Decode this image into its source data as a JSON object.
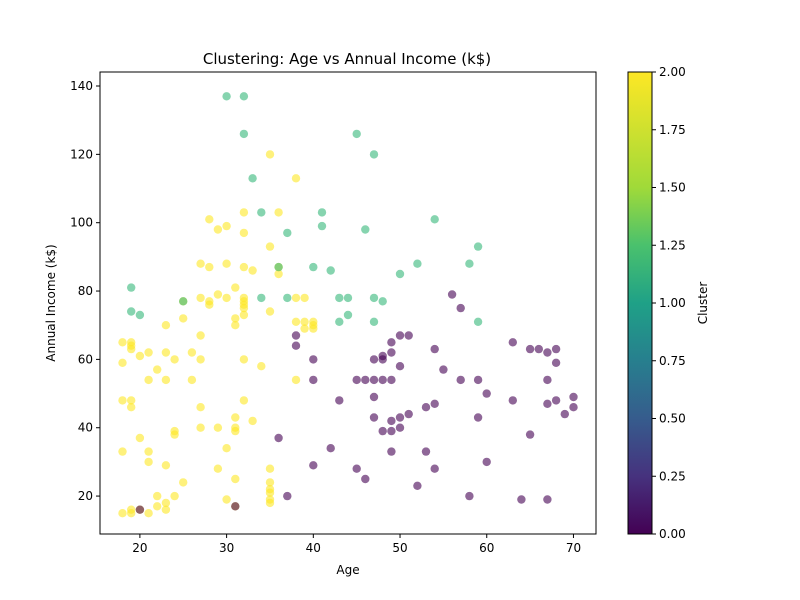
{
  "chart_data": {
    "type": "scatter",
    "title": "Clustering: Age vs Annual Income (k$)",
    "xlabel": "Age",
    "ylabel": "Annual Income (k$)",
    "xlim": [
      15.4,
      72.6
    ],
    "ylim": [
      8.9,
      144.1
    ],
    "xticks": [
      "20",
      "30",
      "40",
      "50",
      "60",
      "70"
    ],
    "yticks": [
      "20",
      "40",
      "60",
      "80",
      "100",
      "120",
      "140"
    ],
    "grid": false,
    "colorbar": {
      "label": "Cluster",
      "range": [
        0.0,
        2.0
      ],
      "ticks": [
        "0.00",
        "0.25",
        "0.50",
        "0.75",
        "1.00",
        "1.25",
        "1.50",
        "1.75",
        "2.00"
      ]
    },
    "series": [
      {
        "cluster": 2,
        "color": "#fde725",
        "points": [
          [
            18,
            15
          ],
          [
            19,
            15
          ],
          [
            19,
            16
          ],
          [
            20,
            16
          ],
          [
            21,
            15
          ],
          [
            22,
            17
          ],
          [
            23,
            16
          ],
          [
            23,
            18
          ],
          [
            24,
            20
          ],
          [
            22,
            20
          ],
          [
            25,
            24
          ],
          [
            18,
            33
          ],
          [
            21,
            33
          ],
          [
            21,
            30
          ],
          [
            23,
            29
          ],
          [
            20,
            37
          ],
          [
            24,
            38
          ],
          [
            24,
            39
          ],
          [
            18,
            48
          ],
          [
            19,
            46
          ],
          [
            19,
            48
          ],
          [
            18,
            59
          ],
          [
            18,
            65
          ],
          [
            19,
            65
          ],
          [
            19,
            63
          ],
          [
            19,
            64
          ],
          [
            20,
            61
          ],
          [
            21,
            62
          ],
          [
            21,
            54
          ],
          [
            22,
            57
          ],
          [
            23,
            54
          ],
          [
            23,
            62
          ],
          [
            24,
            60
          ],
          [
            26,
            62
          ],
          [
            26,
            54
          ],
          [
            23,
            70
          ],
          [
            25,
            72
          ],
          [
            25,
            77
          ],
          [
            27,
            88
          ],
          [
            28,
            87
          ],
          [
            28,
            77
          ],
          [
            28,
            76
          ],
          [
            29,
            79
          ],
          [
            30,
            78
          ],
          [
            30,
            88
          ],
          [
            28,
            101
          ],
          [
            29,
            98
          ],
          [
            30,
            99
          ],
          [
            27,
            78
          ],
          [
            27,
            67
          ],
          [
            27,
            60
          ],
          [
            27,
            46
          ],
          [
            27,
            40
          ],
          [
            29,
            40
          ],
          [
            29,
            28
          ],
          [
            30,
            34
          ],
          [
            30,
            19
          ],
          [
            31,
            25
          ],
          [
            31,
            17
          ],
          [
            31,
            43
          ],
          [
            31,
            39
          ],
          [
            31,
            40
          ],
          [
            32,
            48
          ],
          [
            33,
            42
          ],
          [
            32,
            60
          ],
          [
            34,
            58
          ],
          [
            31,
            70
          ],
          [
            31,
            72
          ],
          [
            32,
            73
          ],
          [
            31,
            81
          ],
          [
            32,
            75
          ],
          [
            32,
            76
          ],
          [
            32,
            77
          ],
          [
            32,
            78
          ],
          [
            33,
            86
          ],
          [
            32,
            87
          ],
          [
            32,
            97
          ],
          [
            32,
            103
          ],
          [
            35,
            93
          ],
          [
            36,
            87
          ],
          [
            36,
            85
          ],
          [
            36,
            103
          ],
          [
            35,
            120
          ],
          [
            38,
            113
          ],
          [
            35,
            74
          ],
          [
            38,
            78
          ],
          [
            39,
            78
          ],
          [
            38,
            71
          ],
          [
            39,
            71
          ],
          [
            40,
            70
          ],
          [
            39,
            69
          ],
          [
            40,
            69
          ],
          [
            40,
            71
          ],
          [
            38,
            54
          ],
          [
            35,
            28
          ],
          [
            35,
            24
          ],
          [
            35,
            22
          ],
          [
            35,
            21
          ],
          [
            35,
            19
          ],
          [
            35,
            18
          ]
        ]
      },
      {
        "cluster": 1,
        "color": "#35b779",
        "points": [
          [
            19,
            81
          ],
          [
            19,
            74
          ],
          [
            20,
            73
          ],
          [
            25,
            77
          ],
          [
            30,
            137
          ],
          [
            32,
            137
          ],
          [
            32,
            126
          ],
          [
            33,
            113
          ],
          [
            34,
            103
          ],
          [
            34,
            78
          ],
          [
            36,
            87
          ],
          [
            37,
            97
          ],
          [
            37,
            78
          ],
          [
            40,
            87
          ],
          [
            41,
            103
          ],
          [
            41,
            99
          ],
          [
            42,
            86
          ],
          [
            43,
            78
          ],
          [
            43,
            71
          ],
          [
            44,
            78
          ],
          [
            44,
            73
          ],
          [
            45,
            126
          ],
          [
            46,
            98
          ],
          [
            47,
            120
          ],
          [
            47,
            78
          ],
          [
            47,
            71
          ],
          [
            48,
            77
          ],
          [
            50,
            85
          ],
          [
            52,
            88
          ],
          [
            54,
            101
          ],
          [
            58,
            88
          ],
          [
            59,
            93
          ],
          [
            59,
            71
          ]
        ]
      },
      {
        "cluster": 0,
        "color": "#440154",
        "points": [
          [
            20,
            16
          ],
          [
            31,
            17
          ],
          [
            36,
            37
          ],
          [
            37,
            20
          ],
          [
            38,
            67
          ],
          [
            38,
            64
          ],
          [
            40,
            60
          ],
          [
            40,
            54
          ],
          [
            40,
            29
          ],
          [
            42,
            34
          ],
          [
            43,
            48
          ],
          [
            45,
            54
          ],
          [
            45,
            28
          ],
          [
            46,
            54
          ],
          [
            46,
            25
          ],
          [
            47,
            60
          ],
          [
            47,
            54
          ],
          [
            47,
            49
          ],
          [
            47,
            43
          ],
          [
            48,
            61
          ],
          [
            48,
            60
          ],
          [
            48,
            54
          ],
          [
            48,
            39
          ],
          [
            49,
            65
          ],
          [
            49,
            62
          ],
          [
            49,
            54
          ],
          [
            49,
            42
          ],
          [
            49,
            39
          ],
          [
            49,
            33
          ],
          [
            50,
            67
          ],
          [
            50,
            58
          ],
          [
            50,
            43
          ],
          [
            50,
            40
          ],
          [
            51,
            67
          ],
          [
            51,
            44
          ],
          [
            52,
            23
          ],
          [
            53,
            46
          ],
          [
            53,
            33
          ],
          [
            54,
            63
          ],
          [
            54,
            47
          ],
          [
            54,
            28
          ],
          [
            55,
            57
          ],
          [
            56,
            79
          ],
          [
            57,
            75
          ],
          [
            57,
            54
          ],
          [
            58,
            20
          ],
          [
            59,
            54
          ],
          [
            59,
            43
          ],
          [
            60,
            50
          ],
          [
            60,
            30
          ],
          [
            63,
            65
          ],
          [
            63,
            48
          ],
          [
            64,
            19
          ],
          [
            65,
            63
          ],
          [
            65,
            38
          ],
          [
            66,
            63
          ],
          [
            67,
            62
          ],
          [
            67,
            54
          ],
          [
            67,
            47
          ],
          [
            67,
            19
          ],
          [
            68,
            63
          ],
          [
            68,
            59
          ],
          [
            68,
            48
          ],
          [
            69,
            44
          ],
          [
            70,
            49
          ],
          [
            70,
            46
          ]
        ]
      }
    ]
  }
}
